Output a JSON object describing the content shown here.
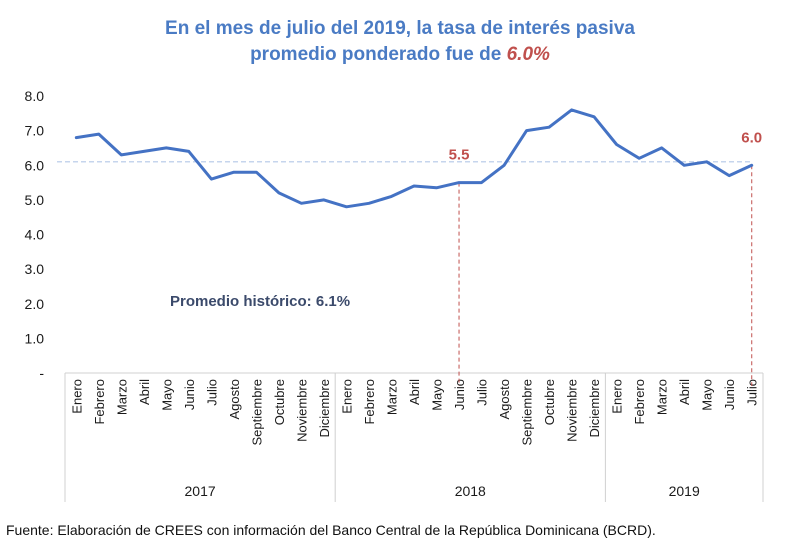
{
  "title": {
    "line1": "En el mes de julio del 2019, la tasa de interés pasiva",
    "line2_prefix": "promedio ponderado fue de ",
    "line2_highlight": "6.0%"
  },
  "footer": "Fuente: Elaboración de CREES con información del Banco Central de la República Dominicana (BCRD).",
  "colors": {
    "title": "#4a7bc4",
    "line": "#4472c4",
    "highlight": "#c0504d",
    "average_line": "#b4c7e7",
    "annotation": "#3b4a6b"
  },
  "chart_data": {
    "type": "line",
    "title": "En el mes de julio del 2019, la tasa de interés pasiva promedio ponderado fue de 6.0%",
    "xlabel": "",
    "ylabel": "",
    "ylim": [
      0,
      8
    ],
    "yticks": [
      0,
      1,
      2,
      3,
      4,
      5,
      6,
      7,
      8
    ],
    "ytick_labels": [
      "-",
      "1.0",
      "2.0",
      "3.0",
      "4.0",
      "5.0",
      "6.0",
      "7.0",
      "8.0"
    ],
    "grid": false,
    "legend": "none",
    "groups": [
      {
        "year": "2017",
        "months": [
          "Enero",
          "Febrero",
          "Marzo",
          "Abril",
          "Mayo",
          "Junio",
          "Julio",
          "Agosto",
          "Septiembre",
          "Octubre",
          "Noviembre",
          "Diciembre"
        ]
      },
      {
        "year": "2018",
        "months": [
          "Enero",
          "Febrero",
          "Marzo",
          "Abril",
          "Mayo",
          "Junio",
          "Julio",
          "Agosto",
          "Septiembre",
          "Octubre",
          "Noviembre",
          "Diciembre"
        ]
      },
      {
        "year": "2019",
        "months": [
          "Enero",
          "Febrero",
          "Marzo",
          "Abril",
          "Mayo",
          "Junio",
          "Julio"
        ]
      }
    ],
    "series": [
      {
        "name": "Tasa de interés pasiva promedio ponderado",
        "values": [
          6.8,
          6.9,
          6.3,
          6.4,
          6.5,
          6.4,
          5.6,
          5.8,
          5.8,
          5.2,
          4.9,
          5.0,
          4.8,
          4.9,
          5.1,
          5.4,
          5.35,
          5.5,
          5.5,
          6.0,
          7.0,
          7.1,
          7.6,
          7.4,
          6.6,
          6.2,
          6.5,
          6.0,
          6.1,
          5.7,
          6.0
        ]
      }
    ],
    "reference_line": {
      "name": "Promedio histórico",
      "value": 6.1
    },
    "annotations": [
      {
        "text": "Promedio histórico: 6.1%"
      },
      {
        "text": "5.5",
        "index": 17
      },
      {
        "text": "6.0",
        "index": 30
      }
    ]
  }
}
